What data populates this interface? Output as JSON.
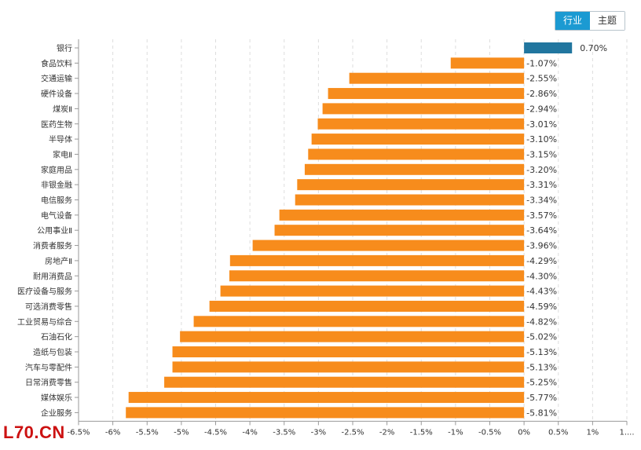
{
  "tabs": [
    {
      "label": "行业",
      "active": true
    },
    {
      "label": "主题",
      "active": false
    }
  ],
  "watermark": "L70.CN",
  "chart_data": {
    "type": "bar",
    "orientation": "horizontal",
    "categories": [
      "银行",
      "食品饮料",
      "交通运输",
      "硬件设备",
      "煤炭Ⅱ",
      "医药生物",
      "半导体",
      "家电Ⅱ",
      "家庭用品",
      "非银金融",
      "电信服务",
      "电气设备",
      "公用事业Ⅱ",
      "消费者服务",
      "房地产Ⅱ",
      "耐用消费品",
      "医疗设备与服务",
      "可选消费零售",
      "工业贸易与综合",
      "石油石化",
      "造纸与包装",
      "汽车与零配件",
      "日常消费零售",
      "媒体娱乐",
      "企业服务"
    ],
    "values": [
      0.7,
      -1.07,
      -2.55,
      -2.86,
      -2.94,
      -3.01,
      -3.1,
      -3.15,
      -3.2,
      -3.31,
      -3.34,
      -3.57,
      -3.64,
      -3.96,
      -4.29,
      -4.3,
      -4.43,
      -4.59,
      -4.82,
      -5.02,
      -5.13,
      -5.13,
      -5.25,
      -5.77,
      -5.81
    ],
    "value_labels": [
      "0.70%",
      "-1.07%",
      "-2.55%",
      "-2.86%",
      "-2.94%",
      "-3.01%",
      "-3.10%",
      "-3.15%",
      "-3.20%",
      "-3.31%",
      "-3.34%",
      "-3.57%",
      "-3.64%",
      "-3.96%",
      "-4.29%",
      "-4.30%",
      "-4.43%",
      "-4.59%",
      "-4.82%",
      "-5.02%",
      "-5.13%",
      "-5.13%",
      "-5.25%",
      "-5.77%",
      "-5.81%"
    ],
    "xlim": [
      -6.5,
      1.5
    ],
    "xticks": [
      -6.5,
      -6,
      -5.5,
      -5,
      -4.5,
      -4,
      -3.5,
      -3,
      -2.5,
      -2,
      -1.5,
      -1,
      -0.5,
      0,
      0.5,
      1,
      1.5
    ],
    "xtick_labels": [
      "-6.5%",
      "-6%",
      "-5.5%",
      "-5%",
      "-4.5%",
      "-4%",
      "-3.5%",
      "-3%",
      "-2.5%",
      "-2%",
      "-1.5%",
      "-1%",
      "-0.5%",
      "0%",
      "0.5%",
      "1%",
      "1...."
    ],
    "grid": true,
    "colors": {
      "positive": "#21769f",
      "negative": "#f78c1c",
      "grid": "#dddddd",
      "axis": "#999999"
    }
  }
}
